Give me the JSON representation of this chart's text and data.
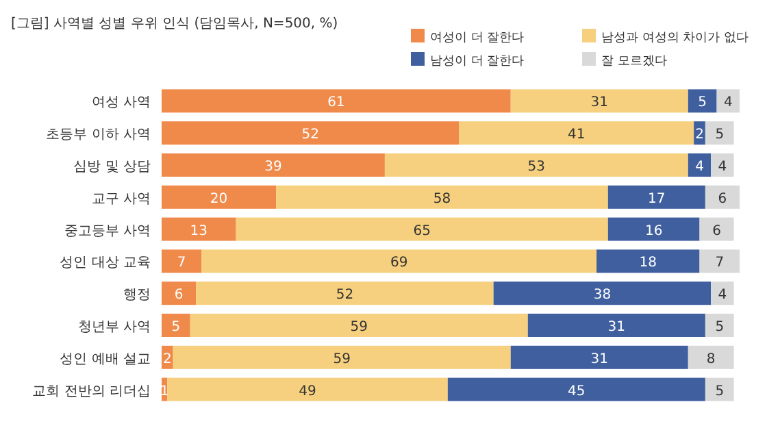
{
  "chart_data": {
    "type": "bar",
    "orientation": "horizontal",
    "stacked": true,
    "data_labels": true,
    "legend": "top right",
    "title": "[그림] 사역별 성별 우위 인식 (담임목사, N=500, %)",
    "categories": [
      "여성 사역",
      "초등부 이하 사역",
      "심방 및 상담",
      "교구 사역",
      "중고등부 사역",
      "성인 대상 교육",
      "행정",
      "청년부 사역",
      "성인 예배 설교",
      "교회 전반의 리더십"
    ],
    "series": [
      {
        "name": "여성이 더 잘한다",
        "color": "#f08a4b",
        "values": [
          61,
          52,
          39,
          20,
          13,
          7,
          6,
          5,
          2,
          1
        ]
      },
      {
        "name": "남성과 여성의 차이가 없다",
        "color": "#f6d07e",
        "values": [
          31,
          41,
          53,
          58,
          65,
          69,
          52,
          59,
          59,
          49
        ]
      },
      {
        "name": "남성이 더 잘한다",
        "color": "#3f5f9f",
        "values": [
          5,
          2,
          4,
          17,
          16,
          18,
          38,
          31,
          31,
          45
        ]
      },
      {
        "name": "잘 모르겠다",
        "color": "#d9d9d9",
        "values": [
          4,
          5,
          4,
          6,
          6,
          7,
          4,
          5,
          8,
          5
        ]
      }
    ]
  }
}
